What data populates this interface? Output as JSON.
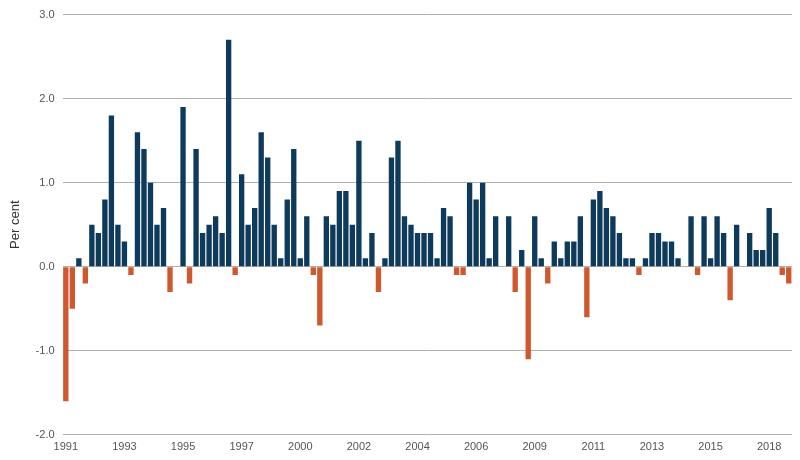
{
  "chart_data": {
    "type": "bar",
    "y_label": "Per cent",
    "categories": [
      "1991",
      null,
      null,
      null,
      null,
      null,
      null,
      null,
      null,
      "1993",
      null,
      null,
      null,
      null,
      null,
      null,
      null,
      null,
      "1995",
      null,
      null,
      null,
      null,
      null,
      null,
      null,
      null,
      "1997",
      null,
      null,
      null,
      null,
      null,
      null,
      null,
      null,
      "2000",
      null,
      null,
      null,
      null,
      null,
      null,
      null,
      null,
      "2002",
      null,
      null,
      null,
      null,
      null,
      null,
      null,
      null,
      "2004",
      null,
      null,
      null,
      null,
      null,
      null,
      null,
      null,
      "2006",
      null,
      null,
      null,
      null,
      null,
      null,
      null,
      null,
      "2009",
      null,
      null,
      null,
      null,
      null,
      null,
      null,
      null,
      "2011",
      null,
      null,
      null,
      null,
      null,
      null,
      null,
      null,
      "2013",
      null,
      null,
      null,
      null,
      null,
      null,
      null,
      null,
      "2015",
      null,
      null,
      null,
      null,
      null,
      null,
      null,
      null,
      "2018",
      null,
      null,
      null
    ],
    "values": [
      -1.6,
      -0.5,
      0.1,
      -0.2,
      0.5,
      0.4,
      0.8,
      1.8,
      0.5,
      0.3,
      -0.1,
      1.6,
      1.4,
      1.0,
      0.5,
      0.7,
      -0.3,
      0,
      1.9,
      -0.2,
      1.4,
      0.4,
      0.5,
      0.6,
      0.4,
      2.7,
      -0.1,
      1.1,
      0.5,
      0.7,
      1.6,
      1.3,
      0.5,
      0.1,
      0.8,
      1.4,
      0.1,
      0.6,
      -0.1,
      -0.7,
      0.6,
      0.5,
      0.9,
      0.9,
      0.5,
      1.5,
      0.1,
      0.4,
      -0.3,
      0.1,
      1.3,
      1.5,
      0.6,
      0.5,
      0.4,
      0.4,
      0.4,
      0.1,
      0.7,
      0.6,
      -0.1,
      -0.1,
      1.0,
      0.8,
      1.0,
      0.1,
      0.6,
      0,
      0.6,
      -0.3,
      0.2,
      -1.1,
      0.6,
      0.1,
      -0.2,
      0.3,
      0.1,
      0.3,
      0.3,
      0.6,
      -0.6,
      0.8,
      0.9,
      0.7,
      0.6,
      0.4,
      0.1,
      0.1,
      -0.1,
      0.1,
      0.4,
      0.4,
      0.3,
      0.3,
      0.1,
      0,
      0.6,
      -0.1,
      0.6,
      0.1,
      0.6,
      0.4,
      -0.4,
      0.5,
      0,
      0.4,
      0.2,
      0.2,
      0.7,
      0.4,
      -0.1,
      -0.2
    ],
    "colors": [
      "#d0582e",
      "#d0582e",
      "#0e3a5b",
      "#d0582e",
      "#0e3a5b",
      "#0e3a5b",
      "#0e3a5b",
      "#0e3a5b",
      "#0e3a5b",
      "#0e3a5b",
      "#d0582e",
      "#0e3a5b",
      "#0e3a5b",
      "#0e3a5b",
      "#0e3a5b",
      "#0e3a5b",
      "#d0582e",
      "#0e3a5b",
      "#0e3a5b",
      "#d0582e",
      "#0e3a5b",
      "#0e3a5b",
      "#0e3a5b",
      "#0e3a5b",
      "#0e3a5b",
      "#0e3a5b",
      "#d0582e",
      "#0e3a5b",
      "#0e3a5b",
      "#0e3a5b",
      "#0e3a5b",
      "#0e3a5b",
      "#0e3a5b",
      "#0e3a5b",
      "#0e3a5b",
      "#0e3a5b",
      "#0e3a5b",
      "#0e3a5b",
      "#d0582e",
      "#d0582e",
      "#0e3a5b",
      "#0e3a5b",
      "#0e3a5b",
      "#0e3a5b",
      "#0e3a5b",
      "#0e3a5b",
      "#0e3a5b",
      "#0e3a5b",
      "#d0582e",
      "#0e3a5b",
      "#0e3a5b",
      "#0e3a5b",
      "#0e3a5b",
      "#0e3a5b",
      "#0e3a5b",
      "#0e3a5b",
      "#0e3a5b",
      "#0e3a5b",
      "#0e3a5b",
      "#0e3a5b",
      "#d0582e",
      "#d0582e",
      "#0e3a5b",
      "#0e3a5b",
      "#0e3a5b",
      "#0e3a5b",
      "#0e3a5b",
      "#0e3a5b",
      "#0e3a5b",
      "#d0582e",
      "#0e3a5b",
      "#d0582e",
      "#0e3a5b",
      "#0e3a5b",
      "#d0582e",
      "#0e3a5b",
      "#0e3a5b",
      "#0e3a5b",
      "#0e3a5b",
      "#0e3a5b",
      "#d0582e",
      "#0e3a5b",
      "#0e3a5b",
      "#0e3a5b",
      "#0e3a5b",
      "#0e3a5b",
      "#0e3a5b",
      "#0e3a5b",
      "#d0582e",
      "#0e3a5b",
      "#0e3a5b",
      "#0e3a5b",
      "#0e3a5b",
      "#0e3a5b",
      "#0e3a5b",
      "#0e3a5b",
      "#0e3a5b",
      "#d0582e",
      "#0e3a5b",
      "#0e3a5b",
      "#0e3a5b",
      "#0e3a5b",
      "#d0582e",
      "#0e3a5b",
      "#0e3a5b",
      "#0e3a5b",
      "#0e3a5b",
      "#0e3a5b",
      "#0e3a5b",
      "#0e3a5b",
      "#d0582e",
      "#d0582e"
    ],
    "ylim": [
      -2,
      3
    ],
    "yticks": [
      {
        "value": -2,
        "label": "-2.0"
      },
      {
        "value": -1,
        "label": "-1.0"
      },
      {
        "value": 0,
        "label": "0.0"
      },
      {
        "value": 1,
        "label": "1.0"
      },
      {
        "value": 2,
        "label": "2.0"
      },
      {
        "value": 3,
        "label": "3.0"
      }
    ],
    "grid": true
  }
}
